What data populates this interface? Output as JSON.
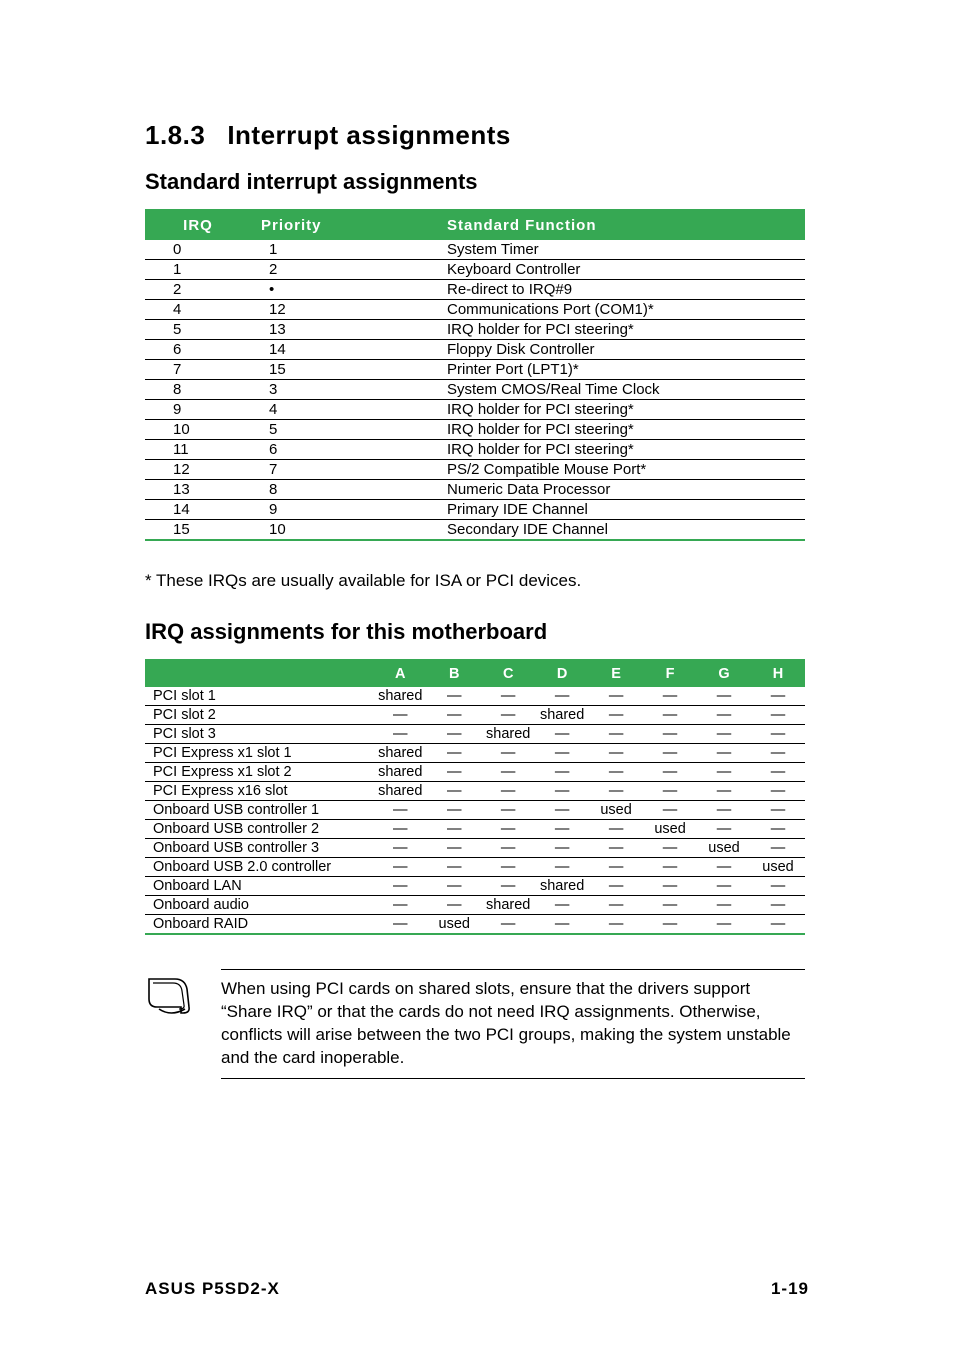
{
  "heading": {
    "number": "1.8.3",
    "title": "Interrupt assignments"
  },
  "sub1_title": "Standard interrupt assignments",
  "table1": {
    "headers": {
      "irq": "IRQ",
      "priority": "Priority",
      "fn": "Standard Function"
    },
    "rows": [
      {
        "irq": "0",
        "pri": "1",
        "fn": "System Timer"
      },
      {
        "irq": "1",
        "pri": "2",
        "fn": "Keyboard Controller"
      },
      {
        "irq": "2",
        "pri": "•",
        "fn": "Re-direct to IRQ#9"
      },
      {
        "irq": "4",
        "pri": "12",
        "fn": "Communications Port (COM1)*"
      },
      {
        "irq": "5",
        "pri": "13",
        "fn": "IRQ holder for PCI steering*"
      },
      {
        "irq": "6",
        "pri": "14",
        "fn": "Floppy Disk Controller"
      },
      {
        "irq": "7",
        "pri": "15",
        "fn": "Printer Port (LPT1)*"
      },
      {
        "irq": "8",
        "pri": "3",
        "fn": "System CMOS/Real Time Clock"
      },
      {
        "irq": "9",
        "pri": "4",
        "fn": "IRQ holder for PCI steering*"
      },
      {
        "irq": "10",
        "pri": "5",
        "fn": "IRQ holder for PCI steering*"
      },
      {
        "irq": "11",
        "pri": "6",
        "fn": "IRQ holder for PCI steering*"
      },
      {
        "irq": "12",
        "pri": "7",
        "fn": "PS/2 Compatible Mouse Port*"
      },
      {
        "irq": "13",
        "pri": "8",
        "fn": "Numeric Data Processor"
      },
      {
        "irq": "14",
        "pri": "9",
        "fn": "Primary IDE Channel"
      },
      {
        "irq": "15",
        "pri": "10",
        "fn": "Secondary IDE Channel"
      }
    ]
  },
  "footnote": "* These IRQs are usually available for ISA or PCI devices.",
  "sub2_title": "IRQ assignments for this motherboard",
  "table2": {
    "cols": [
      "A",
      "B",
      "C",
      "D",
      "E",
      "F",
      "G",
      "H"
    ],
    "rows": [
      {
        "label": "PCI slot 1",
        "cells": [
          "shared",
          "—",
          "—",
          "—",
          "—",
          "—",
          "—",
          "—"
        ]
      },
      {
        "label": "PCI slot 2",
        "cells": [
          "—",
          "—",
          "—",
          "shared",
          "—",
          "—",
          "—",
          "—"
        ]
      },
      {
        "label": "PCI slot 3",
        "cells": [
          "—",
          "—",
          "shared",
          "—",
          "—",
          "—",
          "—",
          "—"
        ]
      },
      {
        "label": "PCI Express x1 slot 1",
        "cells": [
          "shared",
          "—",
          "—",
          "—",
          "—",
          "—",
          "—",
          "—"
        ]
      },
      {
        "label": "PCI Express x1 slot 2",
        "cells": [
          "shared",
          "—",
          "—",
          "—",
          "—",
          "—",
          "—",
          "—"
        ]
      },
      {
        "label": "PCI Express x16 slot",
        "cells": [
          "shared",
          "—",
          "—",
          "—",
          "—",
          "—",
          "—",
          "—"
        ]
      },
      {
        "label": "Onboard USB controller 1",
        "cells": [
          "—",
          "—",
          "—",
          "—",
          "used",
          "—",
          "—",
          "—"
        ]
      },
      {
        "label": "Onboard USB controller 2",
        "cells": [
          "—",
          "—",
          "—",
          "—",
          "—",
          "used",
          "—",
          "—"
        ]
      },
      {
        "label": "Onboard USB controller 3",
        "cells": [
          "—",
          "—",
          "—",
          "—",
          "—",
          "—",
          "used",
          "—"
        ]
      },
      {
        "label": "Onboard USB 2.0 controller",
        "cells": [
          "—",
          "—",
          "—",
          "—",
          "—",
          "—",
          "—",
          "used"
        ]
      },
      {
        "label": "Onboard LAN",
        "cells": [
          "—",
          "—",
          "—",
          "shared",
          "—",
          "—",
          "—",
          "—"
        ]
      },
      {
        "label": "Onboard audio",
        "cells": [
          "—",
          "—",
          "shared",
          "—",
          "—",
          "—",
          "—",
          "—"
        ]
      },
      {
        "label": "Onboard RAID",
        "cells": [
          "—",
          "used",
          "—",
          "—",
          "—",
          "—",
          "—",
          "—"
        ]
      }
    ]
  },
  "note_text": "When using PCI cards on shared slots, ensure that the drivers support “Share IRQ” or that the cards do not need IRQ assignments. Otherwise, conflicts will arise between the two PCI groups, making the system unstable and the card inoperable.",
  "footer": {
    "left": "ASUS P5SD2-X",
    "right": "1-19"
  },
  "colors": {
    "header_bg": "#36a853",
    "header_fg": "#ffffff",
    "rule": "#000000",
    "page_bg": "#ffffff"
  },
  "typography": {
    "body_fontsize": 17,
    "table_fontsize": 15,
    "heading_fontsize": 26,
    "subheading_fontsize": 22,
    "font_family": "Helvetica"
  }
}
